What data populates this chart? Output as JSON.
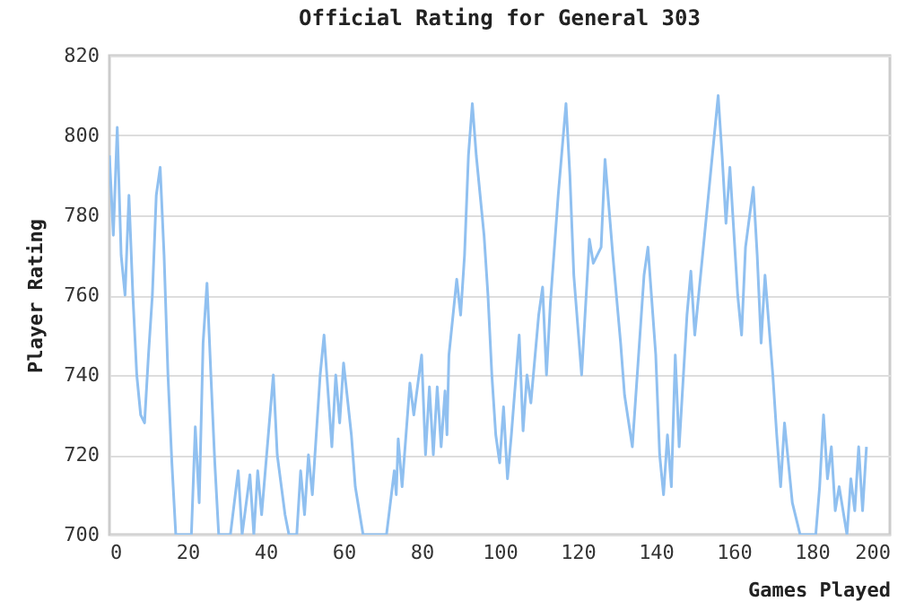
{
  "chart_data": {
    "type": "line",
    "title": "Official Rating for General 303",
    "xlabel": "Games Played",
    "ylabel": "Player Rating",
    "x": [
      0,
      1,
      2,
      3,
      4,
      5,
      6,
      7,
      8,
      9,
      10,
      11,
      12,
      13,
      14,
      15,
      16,
      17,
      18,
      21,
      22,
      23,
      24,
      25,
      26,
      27,
      28,
      31,
      33,
      34,
      36,
      37,
      38,
      39,
      42,
      43,
      45,
      46,
      48,
      49,
      50,
      51,
      52,
      54,
      55,
      57,
      58,
      59,
      60,
      62,
      63,
      65,
      71,
      73,
      73.5,
      74,
      75,
      77,
      78,
      80,
      81,
      82,
      83,
      84,
      85,
      86,
      86.5,
      87,
      89,
      90,
      91,
      92,
      93,
      94,
      96,
      97,
      98,
      99,
      100,
      101,
      102,
      103,
      105,
      106,
      107,
      108,
      110,
      111,
      112,
      113,
      115,
      117,
      118,
      119,
      121,
      123,
      124,
      126,
      127,
      129,
      131,
      132,
      134,
      137,
      138,
      140,
      141,
      142,
      143,
      144,
      145,
      146,
      148,
      149,
      150,
      151,
      154,
      156,
      157,
      158,
      159,
      161,
      162,
      163,
      165,
      166,
      167,
      168,
      170,
      171,
      172,
      173,
      175,
      177,
      181,
      182,
      183,
      184,
      185,
      186,
      187,
      189,
      190,
      191,
      192,
      193,
      194
    ],
    "series": [
      {
        "color": "#90c0f0",
        "values": [
          795,
          775,
          802,
          770,
          760,
          785,
          760,
          740,
          730,
          728,
          745,
          760,
          785,
          792,
          770,
          740,
          718,
          700,
          700,
          700,
          727,
          708,
          748,
          763,
          740,
          718,
          700,
          700,
          716,
          700,
          715,
          700,
          716,
          705,
          740,
          720,
          705,
          700,
          700,
          716,
          705,
          720,
          710,
          740,
          750,
          722,
          740,
          728,
          743,
          725,
          712,
          700,
          700,
          716,
          710,
          724,
          712,
          738,
          730,
          745,
          720,
          737,
          720,
          737,
          722,
          736,
          725,
          745,
          764,
          755,
          770,
          795,
          808,
          795,
          775,
          760,
          740,
          725,
          718,
          732,
          714,
          725,
          750,
          726,
          740,
          733,
          755,
          762,
          740,
          758,
          785,
          808,
          790,
          765,
          740,
          774,
          768,
          772,
          794,
          770,
          748,
          735,
          722,
          765,
          772,
          745,
          720,
          710,
          725,
          712,
          745,
          722,
          755,
          766,
          750,
          760,
          790,
          810,
          795,
          778,
          792,
          760,
          750,
          772,
          787,
          770,
          748,
          765,
          740,
          725,
          712,
          728,
          708,
          700,
          700,
          712,
          730,
          714,
          722,
          706,
          712,
          700,
          714,
          706,
          722,
          706,
          722
        ]
      }
    ],
    "xlim": [
      0,
      200
    ],
    "xticks": [
      0,
      20,
      40,
      60,
      80,
      100,
      120,
      140,
      160,
      180,
      200
    ],
    "ylim": [
      700,
      820
    ],
    "yticks": [
      700,
      720,
      740,
      760,
      780,
      800,
      820
    ],
    "grid": "y",
    "legend": false,
    "marker": "none",
    "line_style": "solid"
  }
}
